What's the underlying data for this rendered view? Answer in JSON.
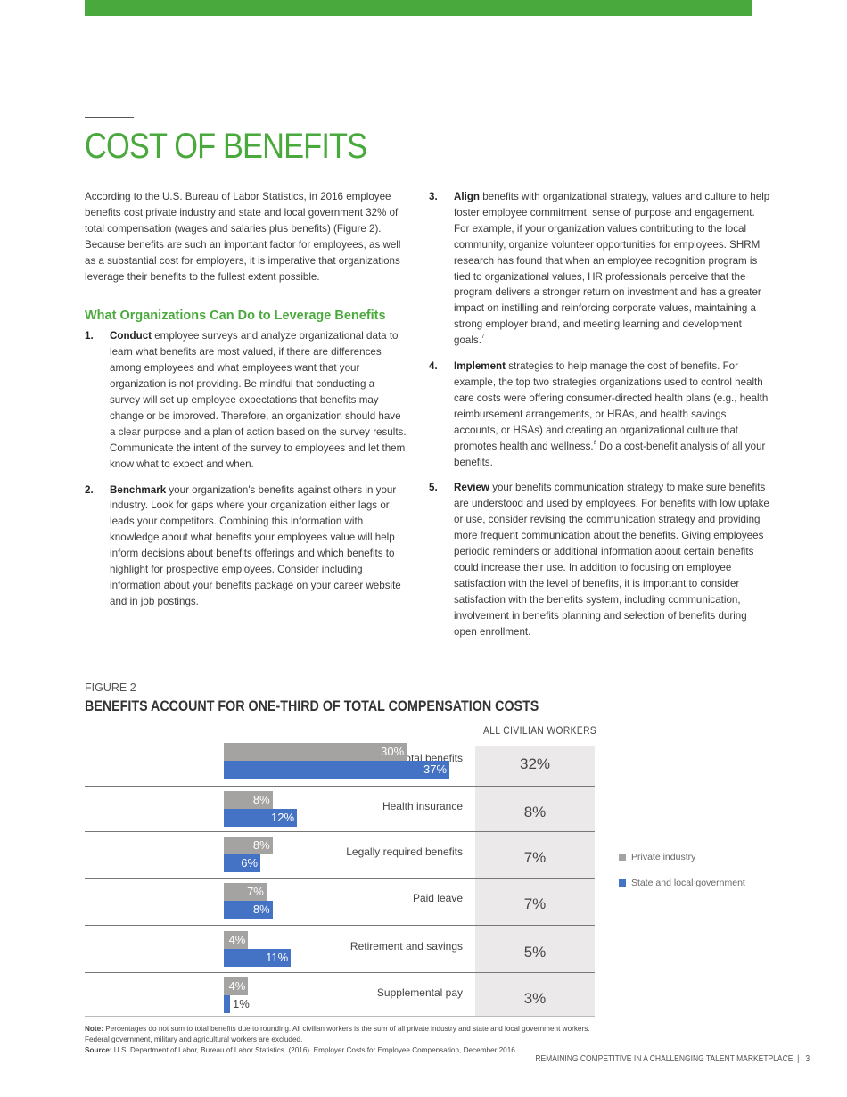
{
  "page": {
    "title": "COST OF BENEFITS",
    "accent": "#4aa93c"
  },
  "intro": "According to the U.S. Bureau of Labor Statistics, in 2016 employee benefits cost private industry and state and local government 32% of total compensation (wages and salaries plus benefits) (Figure 2). Because benefits are such an important factor for employees, as well as a substantial cost for employers, it is imperative that organizations leverage their benefits to the fullest extent possible.",
  "section_heading": "What Organizations Can Do to Leverage Benefits",
  "items": [
    {
      "num": "1.",
      "bold": "Conduct",
      "text": " employee surveys and analyze organizational data to learn what benefits are most valued, if there are differences among employees and what employees want that your organization is not providing. Be mindful that conducting a survey will set up employee expectations that benefits may change or be improved. Therefore, an organization should have a clear purpose and a plan of action based on the survey results. Communicate the intent of the survey to employees and let them know what to expect and when.",
      "sup": "",
      "text_after": ""
    },
    {
      "num": "2.",
      "bold": "Benchmark",
      "text": " your organization's benefits against others in your industry. Look for gaps where your organization either lags or leads your competitors. Combining this information with knowledge about what benefits your employees value will help inform decisions about benefits offerings and which benefits to highlight for prospective employees. Consider including information about your benefits package on your career website and in job postings.",
      "sup": "",
      "text_after": ""
    },
    {
      "num": "3.",
      "bold": "Align",
      "text": " benefits with organizational strategy, values and culture to help foster employee commitment, sense of purpose and engagement. For example, if your organization values contributing to the local community, organize volunteer opportunities for employees. SHRM research has found that when an employee recognition program is tied to organizational values, HR professionals perceive that the program delivers a stronger return on investment and has a greater impact on instilling and reinforcing corporate values, maintaining a strong employer brand, and meeting learning and development goals.",
      "sup": "7",
      "text_after": ""
    },
    {
      "num": "4.",
      "bold": "Implement",
      "text": " strategies to help manage the cost of benefits. For example, the top two strategies organizations used to control health care costs were offering consumer-directed health plans (e.g., health reimbursement arrangements, or HRAs, and health savings accounts, or HSAs) and creating an organizational culture that promotes health and wellness.",
      "sup": "8",
      "text_after": " Do a cost-benefit analysis of all your benefits."
    },
    {
      "num": "5.",
      "bold": "Review",
      "text": " your benefits communication strategy to make sure benefits are understood and used by employees. For benefits with low uptake or use, consider revising the communication strategy and providing more frequent communication about the benefits. Giving employees periodic reminders or additional information about certain benefits could increase their use. In addition to focusing on employee satisfaction with the level of benefits, it is important to consider satisfaction with the benefits system, including communication, involvement in benefits planning and selection of benefits during open enrollment.",
      "sup": "",
      "text_after": ""
    }
  ],
  "chart_data": {
    "type": "bar",
    "figure_label": "FIGURE 2",
    "title": "BENEFITS ACCOUNT FOR ONE-THIRD OF TOTAL COMPENSATION COSTS",
    "column_header": "ALL CIVILIAN WORKERS",
    "categories": [
      "Total benefits",
      "Health insurance",
      "Legally required benefits",
      "Paid leave",
      "Retirement and savings",
      "Supplemental pay"
    ],
    "series": [
      {
        "name": "Private industry",
        "color": "#a5a2a2",
        "values": [
          30,
          8,
          8,
          7,
          4,
          4
        ],
        "labels": [
          "30%",
          "8%",
          "8%",
          "7%",
          "4%",
          "4%"
        ]
      },
      {
        "name": "State and local government",
        "color": "#4472c4",
        "values": [
          37,
          12,
          6,
          8,
          11,
          1
        ],
        "labels": [
          "37%",
          "12%",
          "6%",
          "8%",
          "11%",
          "1%"
        ]
      }
    ],
    "all_civilian": [
      "32%",
      "8%",
      "7%",
      "7%",
      "5%",
      "3%"
    ],
    "legend": "right"
  },
  "note_label": "Note:",
  "note": " Percentages do not sum to total benefits due to rounding.  All civilian workers is the sum of all private industry and state and local government workers. Federal government, military and agricultural workers are excluded.",
  "source_label": "Source:",
  "source": " U.S. Department of Labor, Bureau of Labor Statistics. (2016). Employer Costs for Employee Compensation, December 2016.",
  "footer": {
    "title": "REMAINING COMPETITIVE IN A CHALLENGING TALENT MARKETPLACE",
    "sep": "|",
    "page": "3"
  }
}
